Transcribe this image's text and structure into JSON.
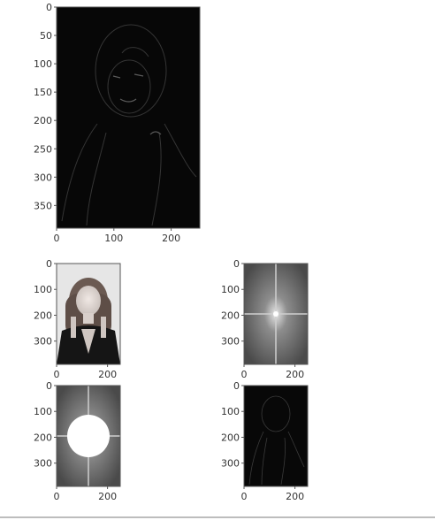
{
  "figure": {
    "panels": [
      {
        "id": "edges-large",
        "depicts": "high-pass filtered image: dark background with faint bright edges of a portrait",
        "xticks": [
          "0",
          "100",
          "200"
        ],
        "yticks": [
          "0",
          "50",
          "100",
          "150",
          "200",
          "250",
          "300",
          "350"
        ]
      },
      {
        "id": "original",
        "depicts": "grayscale portrait photo",
        "xticks": [
          "0",
          "200"
        ],
        "yticks": [
          "0",
          "100",
          "200",
          "300"
        ]
      },
      {
        "id": "spectrum",
        "depicts": "log magnitude Fourier spectrum with bright center and cross",
        "xticks": [
          "0",
          "200"
        ],
        "yticks": [
          "0",
          "100",
          "200",
          "300"
        ]
      },
      {
        "id": "masked-spectrum",
        "depicts": "Fourier spectrum with white circular mask at center",
        "xticks": [
          "0",
          "200"
        ],
        "yticks": [
          "0",
          "100",
          "200",
          "300"
        ]
      },
      {
        "id": "edges-small",
        "depicts": "high-pass filtered result, dark with faint edges",
        "xticks": [
          "0",
          "200"
        ],
        "yticks": [
          "0",
          "100",
          "200",
          "300"
        ]
      }
    ]
  },
  "chart_data": [
    {
      "type": "heatmap",
      "title": "",
      "xlabel": "",
      "ylabel": "",
      "xlim": [
        0,
        250
      ],
      "ylim": [
        390,
        0
      ],
      "xticks": [
        0,
        100,
        200
      ],
      "yticks": [
        0,
        50,
        100,
        150,
        200,
        250,
        300,
        350
      ],
      "colormap": "gray"
    },
    {
      "type": "heatmap",
      "title": "",
      "xlabel": "",
      "ylabel": "",
      "xlim": [
        0,
        250
      ],
      "ylim": [
        390,
        0
      ],
      "xticks": [
        0,
        200
      ],
      "yticks": [
        0,
        100,
        200,
        300
      ],
      "colormap": "gray"
    },
    {
      "type": "heatmap",
      "title": "",
      "xlabel": "",
      "ylabel": "",
      "xlim": [
        0,
        250
      ],
      "ylim": [
        390,
        0
      ],
      "xticks": [
        0,
        200
      ],
      "yticks": [
        0,
        100,
        200,
        300
      ],
      "colormap": "gray"
    },
    {
      "type": "heatmap",
      "title": "",
      "xlabel": "",
      "ylabel": "",
      "xlim": [
        0,
        250
      ],
      "ylim": [
        390,
        0
      ],
      "xticks": [
        0,
        200
      ],
      "yticks": [
        0,
        100,
        200,
        300
      ],
      "colormap": "gray",
      "mask": {
        "shape": "circle",
        "center": [
          125,
          195
        ],
        "radius": 80
      }
    },
    {
      "type": "heatmap",
      "title": "",
      "xlabel": "",
      "ylabel": "",
      "xlim": [
        0,
        250
      ],
      "ylim": [
        390,
        0
      ],
      "xticks": [
        0,
        200
      ],
      "yticks": [
        0,
        100,
        200,
        300
      ],
      "colormap": "gray"
    }
  ]
}
